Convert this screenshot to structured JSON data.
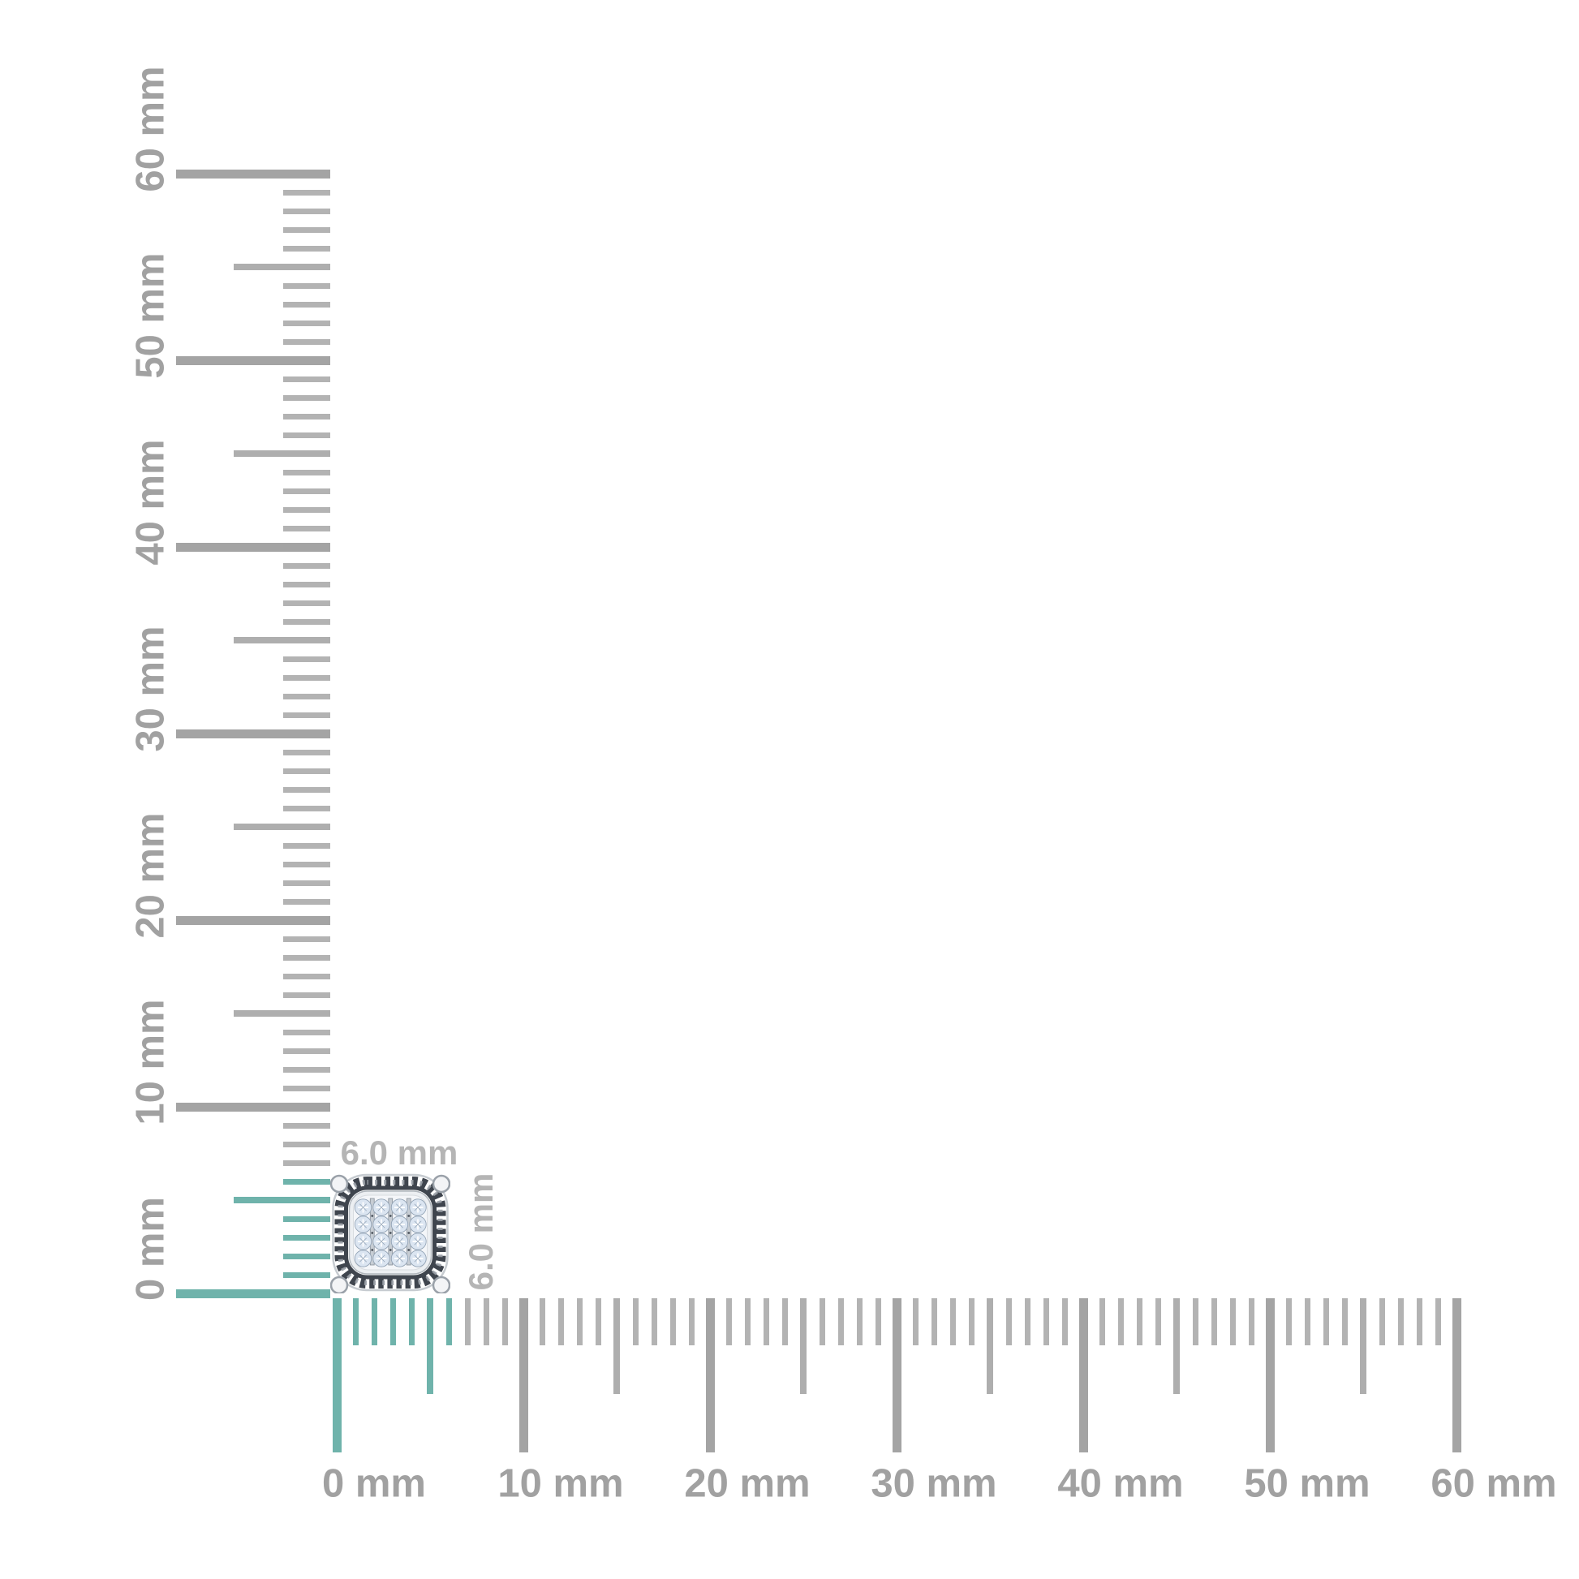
{
  "unit": "mm",
  "item": {
    "type": "cushion-shaped pave diamond stud earring",
    "width_label": "6.0 mm",
    "height_label": "6.0 mm",
    "width_mm": 6.0,
    "height_mm": 6.0
  },
  "vertical_ruler": {
    "orientation": "vertical",
    "min_mm": 0,
    "max_mm": 60,
    "minor_step_mm": 1,
    "medium_step_mm": 5,
    "major_step_mm": 10,
    "highlight_from_mm": 0,
    "highlight_to_mm": 6,
    "labels": [
      {
        "mm": 0,
        "text": "0 mm"
      },
      {
        "mm": 10,
        "text": "10 mm"
      },
      {
        "mm": 20,
        "text": "20 mm"
      },
      {
        "mm": 30,
        "text": "30 mm"
      },
      {
        "mm": 40,
        "text": "40 mm"
      },
      {
        "mm": 50,
        "text": "50 mm"
      },
      {
        "mm": 60,
        "text": "60 mm"
      }
    ]
  },
  "horizontal_ruler": {
    "orientation": "horizontal",
    "min_mm": 0,
    "max_mm": 60,
    "minor_step_mm": 1,
    "medium_step_mm": 5,
    "major_step_mm": 10,
    "highlight_from_mm": 0,
    "highlight_to_mm": 6,
    "labels": [
      {
        "mm": 0,
        "text": "0 mm"
      },
      {
        "mm": 10,
        "text": "10 mm"
      },
      {
        "mm": 20,
        "text": "20 mm"
      },
      {
        "mm": 30,
        "text": "30 mm"
      },
      {
        "mm": 40,
        "text": "40 mm"
      },
      {
        "mm": 50,
        "text": "50 mm"
      },
      {
        "mm": 60,
        "text": "60 mm"
      }
    ]
  },
  "colors": {
    "background": "#ffffff",
    "tick_minor": "#b3b3b3",
    "tick_medium": "#aeaeae",
    "tick_major": "#a4a4a4",
    "highlight_teal": "#6fb3ab",
    "ruler_label": "#a1a1a1",
    "dimension_label": "#b5b5b5",
    "metal_dark": "#3f454e",
    "metal_mid": "#9aa0a7",
    "metal_light": "#eceff2",
    "metal_outline": "#c6cbd0",
    "diamond_fill": "#dbe5f1",
    "diamond_edge": "#8fa0b3",
    "pave_bg": "#f4f6f9",
    "channel_bar": "#c7cdd4",
    "channel_edge": "#8a919a",
    "bead_dot": "#4b525b",
    "prong_fill": "#f3f4f6",
    "prong_edge": "#9aa1a9"
  }
}
